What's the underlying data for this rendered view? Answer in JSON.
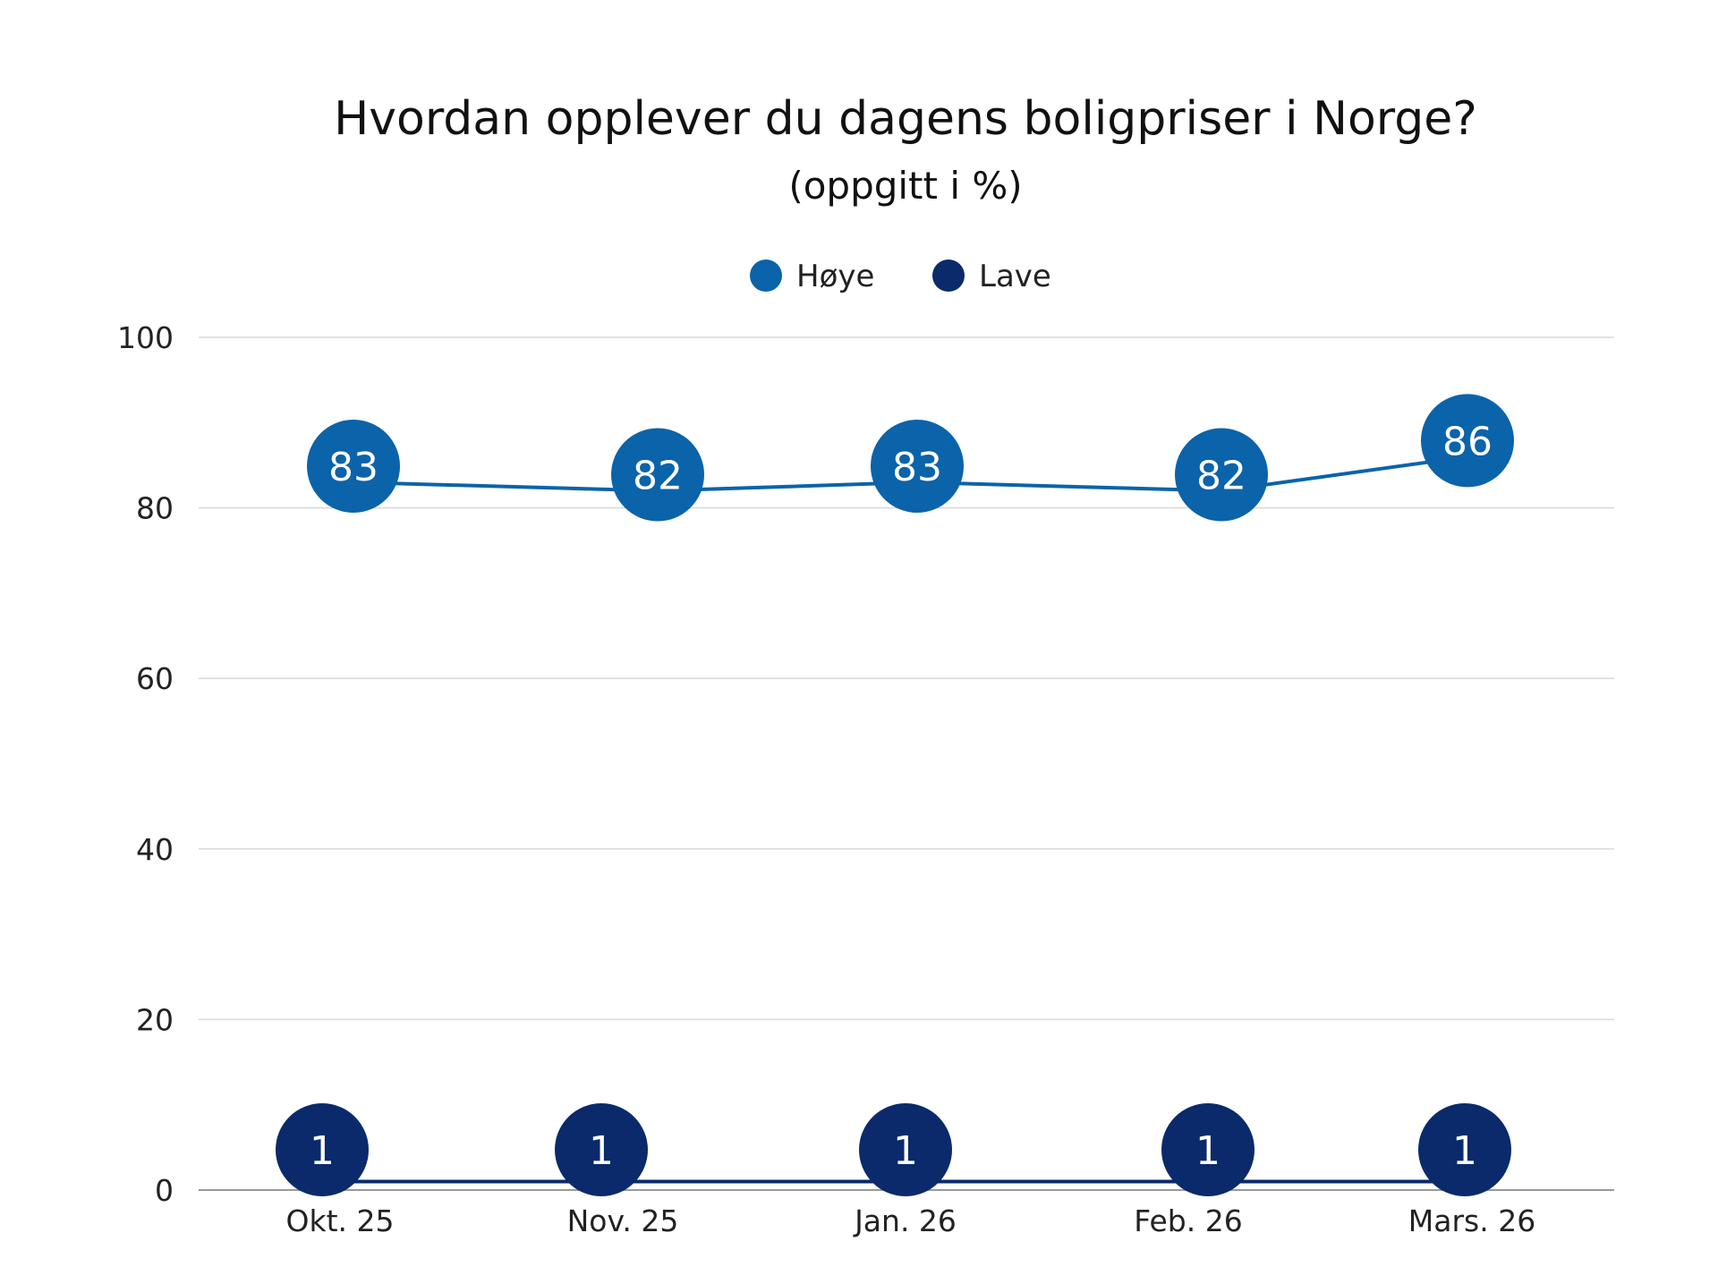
{
  "chart_data": {
    "type": "line",
    "title": "Hvordan opplever du dagens boligpriser i Norge?",
    "subtitle": "(oppgitt i %)",
    "categories": [
      "Okt. 25",
      "Nov. 25",
      "Jan. 26",
      "Feb. 26",
      "Mars. 26"
    ],
    "series": [
      {
        "name": "Høye",
        "values": [
          83,
          82,
          83,
          82,
          86
        ],
        "color": "#0b63aa"
      },
      {
        "name": "Lave",
        "values": [
          1,
          1,
          1,
          1,
          1
        ],
        "color": "#0a2a6b"
      }
    ],
    "ylim": [
      0,
      100
    ],
    "yticks": [
      "0",
      "20",
      "40",
      "60",
      "80",
      "100"
    ],
    "grid": true,
    "legend": "top-center",
    "xlabel": "",
    "ylabel": ""
  }
}
